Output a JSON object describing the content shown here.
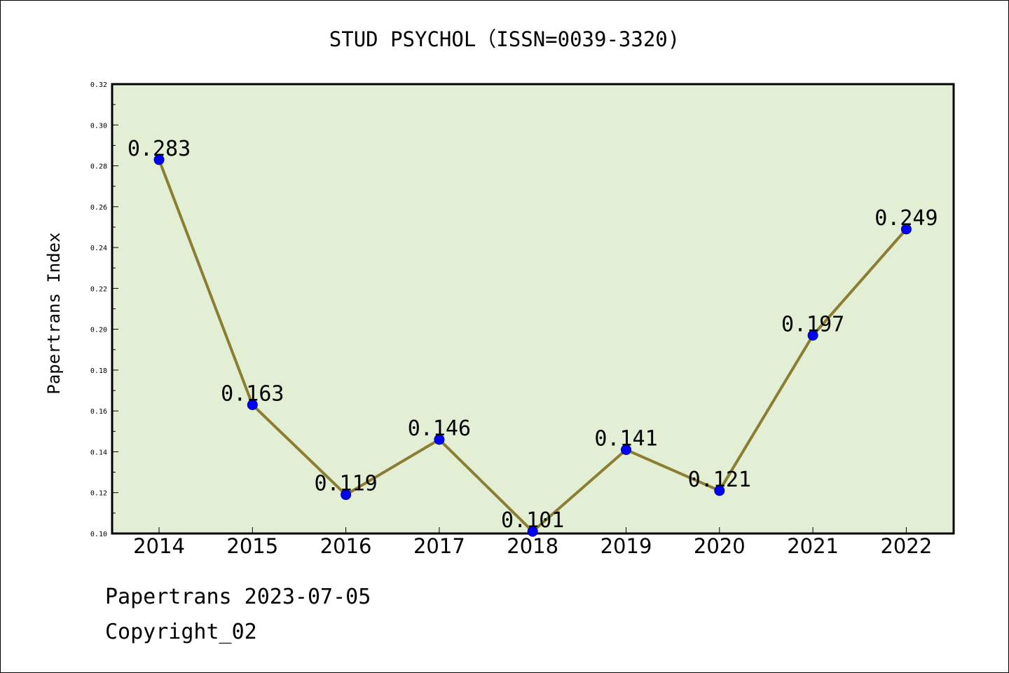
{
  "chart_data": {
    "type": "line",
    "title": "STUD PSYCHOL（ISSN=0039-3320)",
    "xlabel": "",
    "ylabel": "Papertrans Index",
    "categories": [
      "2014",
      "2015",
      "2016",
      "2017",
      "2018",
      "2019",
      "2020",
      "2021",
      "2022"
    ],
    "values": [
      0.283,
      0.163,
      0.119,
      0.146,
      0.101,
      0.141,
      0.121,
      0.197,
      0.249
    ],
    "data_labels": [
      "0.283",
      "0.163",
      "0.119",
      "0.146",
      "0.101",
      "0.141",
      "0.121",
      "0.197",
      "0.249"
    ],
    "ylim": [
      0.1,
      0.32
    ],
    "yticks": [
      "0.10",
      "0.12",
      "0.14",
      "0.16",
      "0.18",
      "0.20",
      "0.22",
      "0.24",
      "0.26",
      "0.28",
      "0.30",
      "0.32"
    ],
    "grid": false,
    "legend": "none",
    "colors": {
      "plot_background": "#e2efd4",
      "line": "#8b7d32",
      "marker_fill": "#0000ff",
      "marker_edge": "#000080"
    }
  },
  "footer": {
    "source": "Papertrans 2023-07-05",
    "copyright": "Copyright_02"
  }
}
